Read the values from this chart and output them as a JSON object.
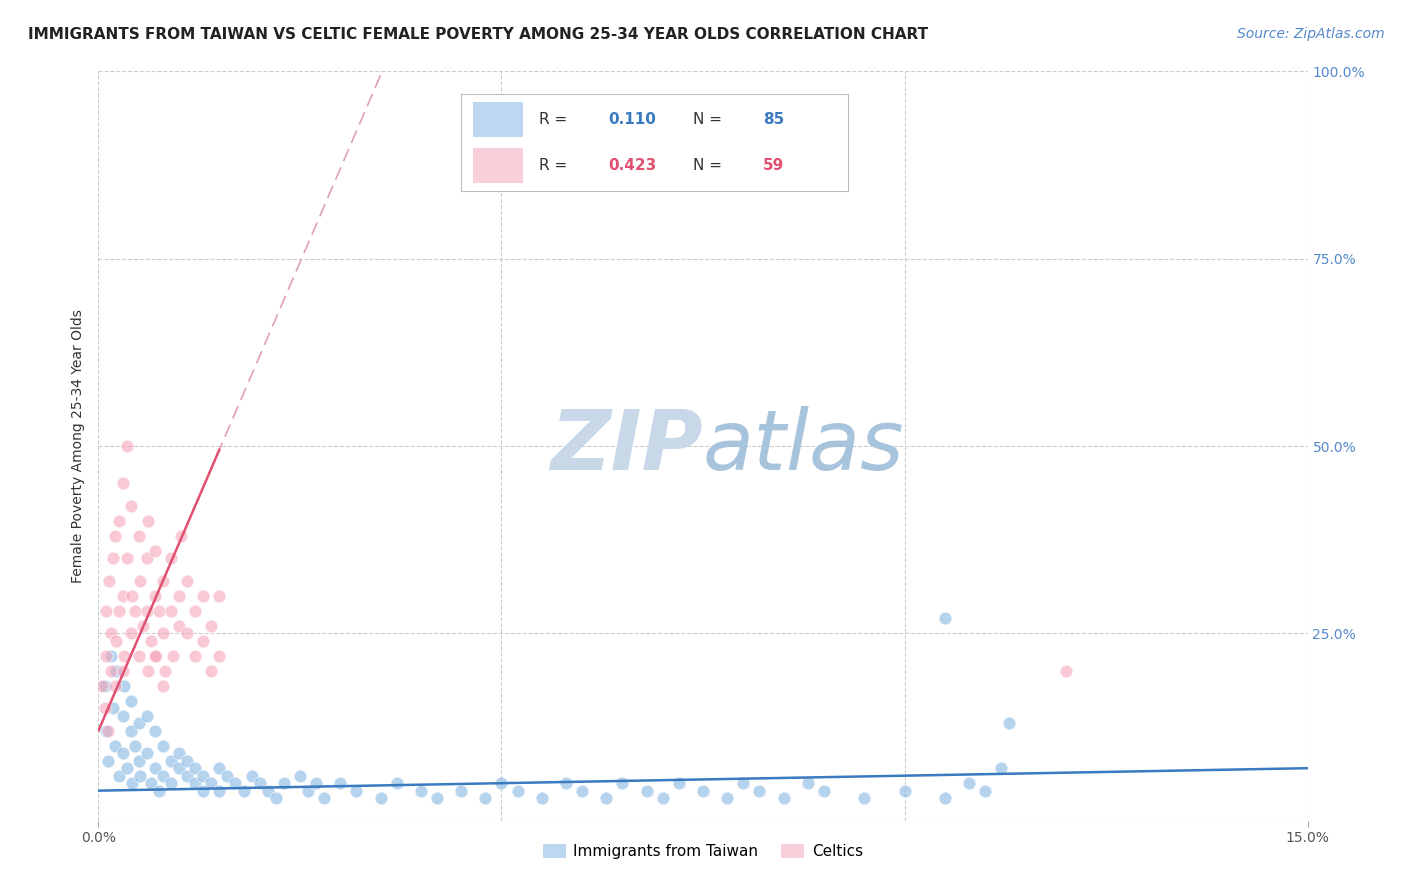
{
  "title": "IMMIGRANTS FROM TAIWAN VS CELTIC FEMALE POVERTY AMONG 25-34 YEAR OLDS CORRELATION CHART",
  "source": "Source: ZipAtlas.com",
  "ylabel": "Female Poverty Among 25-34 Year Olds",
  "xlim": [
    0.0,
    0.15
  ],
  "ylim": [
    0.0,
    1.0
  ],
  "grid_color": "#cccccc",
  "background_color": "#ffffff",
  "watermark_text": "ZIPatlas",
  "watermark_color": "#c8d8e8",
  "taiwan_color": "#7ab0e0",
  "celtic_color": "#f5a0b5",
  "taiwan_label": "Immigrants from Taiwan",
  "celtic_label": "Celtics",
  "legend_R_taiwan": "0.110",
  "legend_N_taiwan": "85",
  "legend_R_celtic": "0.423",
  "legend_N_celtic": "59",
  "title_fontsize": 11,
  "axis_label_fontsize": 10,
  "tick_fontsize": 10,
  "legend_fontsize": 11,
  "source_fontsize": 10,
  "trendline_taiwan_color": "#3a7abf",
  "trendline_celtic_color": "#e05070",
  "trendline_celtic_dashed_color": "#e0a0b0",
  "right_tick_color": "#5588cc",
  "taiwan_scatter_x": [
    0.0008,
    0.001,
    0.0012,
    0.0015,
    0.0018,
    0.002,
    0.0022,
    0.0025,
    0.003,
    0.003,
    0.0032,
    0.0035,
    0.004,
    0.004,
    0.0042,
    0.0045,
    0.005,
    0.005,
    0.0052,
    0.006,
    0.006,
    0.0065,
    0.007,
    0.007,
    0.0075,
    0.008,
    0.008,
    0.009,
    0.009,
    0.01,
    0.01,
    0.011,
    0.011,
    0.012,
    0.012,
    0.013,
    0.013,
    0.014,
    0.015,
    0.015,
    0.016,
    0.017,
    0.018,
    0.019,
    0.02,
    0.021,
    0.022,
    0.023,
    0.025,
    0.026,
    0.027,
    0.028,
    0.03,
    0.032,
    0.035,
    0.037,
    0.04,
    0.042,
    0.045,
    0.048,
    0.05,
    0.052,
    0.055,
    0.058,
    0.06,
    0.063,
    0.065,
    0.068,
    0.07,
    0.072,
    0.075,
    0.078,
    0.08,
    0.082,
    0.085,
    0.088,
    0.09,
    0.095,
    0.1,
    0.105,
    0.108,
    0.11,
    0.112,
    0.105,
    0.113
  ],
  "taiwan_scatter_y": [
    0.18,
    0.12,
    0.08,
    0.22,
    0.15,
    0.1,
    0.2,
    0.06,
    0.14,
    0.09,
    0.18,
    0.07,
    0.12,
    0.16,
    0.05,
    0.1,
    0.13,
    0.08,
    0.06,
    0.09,
    0.14,
    0.05,
    0.07,
    0.12,
    0.04,
    0.1,
    0.06,
    0.08,
    0.05,
    0.09,
    0.07,
    0.06,
    0.08,
    0.05,
    0.07,
    0.06,
    0.04,
    0.05,
    0.07,
    0.04,
    0.06,
    0.05,
    0.04,
    0.06,
    0.05,
    0.04,
    0.03,
    0.05,
    0.06,
    0.04,
    0.05,
    0.03,
    0.05,
    0.04,
    0.03,
    0.05,
    0.04,
    0.03,
    0.04,
    0.03,
    0.05,
    0.04,
    0.03,
    0.05,
    0.04,
    0.03,
    0.05,
    0.04,
    0.03,
    0.05,
    0.04,
    0.03,
    0.05,
    0.04,
    0.03,
    0.05,
    0.04,
    0.03,
    0.04,
    0.03,
    0.05,
    0.04,
    0.07,
    0.27,
    0.13
  ],
  "celtic_scatter_x": [
    0.0005,
    0.0008,
    0.001,
    0.001,
    0.0012,
    0.0013,
    0.0015,
    0.0015,
    0.0018,
    0.002,
    0.002,
    0.0022,
    0.0025,
    0.0025,
    0.003,
    0.003,
    0.003,
    0.0032,
    0.0035,
    0.0035,
    0.004,
    0.004,
    0.0042,
    0.0045,
    0.005,
    0.005,
    0.0052,
    0.0055,
    0.006,
    0.006,
    0.0062,
    0.0065,
    0.007,
    0.007,
    0.0072,
    0.0075,
    0.008,
    0.008,
    0.0082,
    0.009,
    0.009,
    0.0092,
    0.01,
    0.01,
    0.0102,
    0.011,
    0.011,
    0.012,
    0.012,
    0.013,
    0.013,
    0.014,
    0.014,
    0.015,
    0.015,
    0.0062,
    0.007,
    0.008,
    0.12
  ],
  "celtic_scatter_y": [
    0.18,
    0.15,
    0.22,
    0.28,
    0.12,
    0.32,
    0.25,
    0.2,
    0.35,
    0.18,
    0.38,
    0.24,
    0.28,
    0.4,
    0.2,
    0.3,
    0.45,
    0.22,
    0.35,
    0.5,
    0.25,
    0.42,
    0.3,
    0.28,
    0.38,
    0.22,
    0.32,
    0.26,
    0.35,
    0.28,
    0.4,
    0.24,
    0.3,
    0.36,
    0.22,
    0.28,
    0.25,
    0.32,
    0.2,
    0.28,
    0.35,
    0.22,
    0.3,
    0.26,
    0.38,
    0.25,
    0.32,
    0.22,
    0.28,
    0.24,
    0.3,
    0.2,
    0.26,
    0.22,
    0.3,
    0.2,
    0.22,
    0.18,
    0.2
  ]
}
